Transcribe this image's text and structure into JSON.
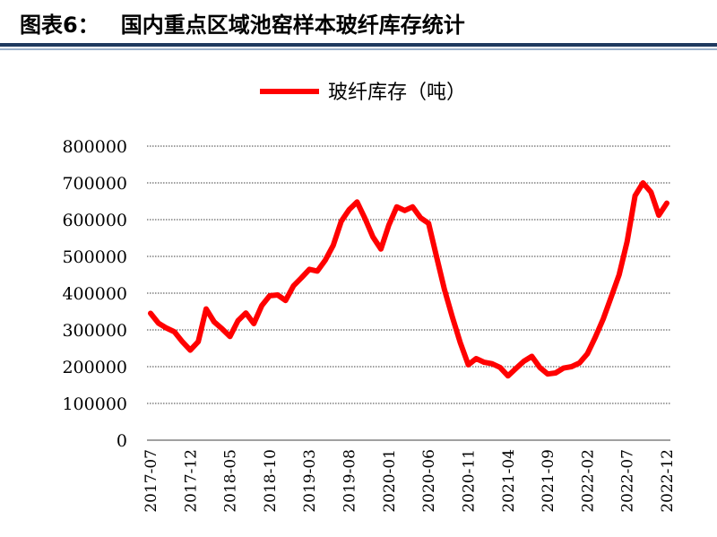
{
  "header": {
    "figure_number": "图表6：",
    "title": "国内重点区域池窑样本玻纤库存统计"
  },
  "colors": {
    "series": "#ff0000",
    "rule_dark": "#1f3a5f",
    "grid": "#000000"
  },
  "chart_data": {
    "type": "line",
    "title": "",
    "xlabel": "",
    "ylabel": "",
    "legend_position": "top-center",
    "grid": true,
    "ylim": [
      0,
      800000
    ],
    "yticks": [
      "0",
      "100000",
      "200000",
      "300000",
      "400000",
      "500000",
      "600000",
      "700000",
      "800000"
    ],
    "xtick_labels": [
      "2017-07",
      "2017-12",
      "2018-05",
      "2018-10",
      "2019-03",
      "2019-08",
      "2020-01",
      "2020-06",
      "2020-11",
      "2021-04",
      "2021-09",
      "2022-02",
      "2022-07",
      "2022-12"
    ],
    "x": [
      "2017-07",
      "2017-08",
      "2017-09",
      "2017-10",
      "2017-11",
      "2017-12",
      "2018-01",
      "2018-02",
      "2018-03",
      "2018-04",
      "2018-05",
      "2018-06",
      "2018-07",
      "2018-08",
      "2018-09",
      "2018-10",
      "2018-11",
      "2018-12",
      "2019-01",
      "2019-02",
      "2019-03",
      "2019-04",
      "2019-05",
      "2019-06",
      "2019-07",
      "2019-08",
      "2019-09",
      "2019-10",
      "2019-11",
      "2019-12",
      "2020-01",
      "2020-02",
      "2020-03",
      "2020-04",
      "2020-05",
      "2020-06",
      "2020-07",
      "2020-08",
      "2020-09",
      "2020-10",
      "2020-11",
      "2020-12",
      "2021-01",
      "2021-02",
      "2021-03",
      "2021-04",
      "2021-05",
      "2021-06",
      "2021-07",
      "2021-08",
      "2021-09",
      "2021-10",
      "2021-11",
      "2021-12",
      "2022-01",
      "2022-02",
      "2022-03",
      "2022-04",
      "2022-05",
      "2022-06",
      "2022-07",
      "2022-08",
      "2022-09",
      "2022-10",
      "2022-11",
      "2022-12"
    ],
    "series": [
      {
        "name": "玻纤库存（吨）",
        "values": [
          345000,
          318000,
          305000,
          295000,
          268000,
          245000,
          268000,
          357000,
          322000,
          303000,
          282000,
          325000,
          346000,
          317000,
          366000,
          393000,
          395000,
          380000,
          420000,
          442000,
          465000,
          460000,
          490000,
          530000,
          595000,
          627000,
          648000,
          603000,
          553000,
          520000,
          585000,
          635000,
          625000,
          635000,
          605000,
          590000,
          500000,
          410000,
          335000,
          265000,
          205000,
          222000,
          212000,
          208000,
          198000,
          175000,
          195000,
          215000,
          228000,
          198000,
          180000,
          183000,
          196000,
          200000,
          210000,
          235000,
          280000,
          330000,
          390000,
          450000,
          540000,
          665000,
          700000,
          675000,
          612000,
          645000
        ]
      }
    ]
  }
}
